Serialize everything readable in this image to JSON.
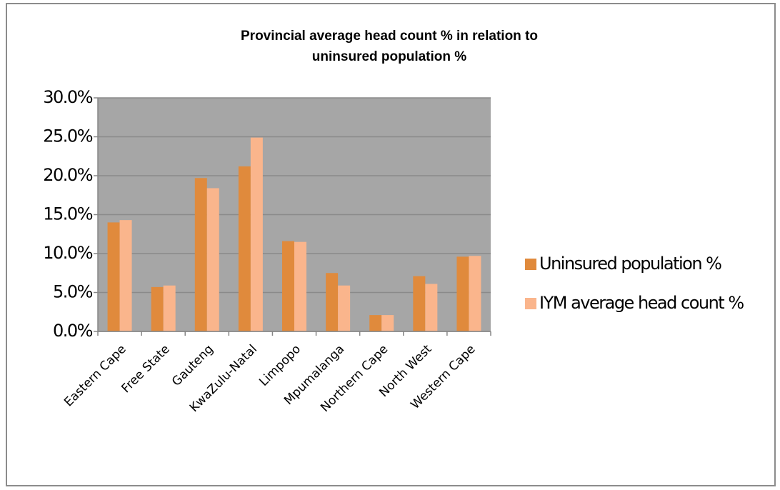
{
  "chart_data": {
    "type": "bar",
    "title": [
      "Provincial average head count % in relation to",
      "uninsured population %"
    ],
    "categories": [
      "Eastern Cape",
      "Free State",
      "Gauteng",
      "KwaZulu-Natal",
      "Limpopo",
      "Mpumalanga",
      "Northern Cape",
      "North West",
      "Western Cape"
    ],
    "series": [
      {
        "name": "Uninsured population %",
        "color": "#e08a3c",
        "values": [
          14.0,
          5.7,
          19.7,
          21.2,
          11.6,
          7.5,
          2.1,
          7.1,
          9.6
        ]
      },
      {
        "name": "IYM average head count %",
        "color": "#fab58c",
        "values": [
          14.3,
          5.9,
          18.4,
          24.9,
          11.5,
          5.9,
          2.1,
          6.1,
          9.7
        ]
      }
    ],
    "ylim": [
      0,
      30
    ],
    "yticks": [
      {
        "value": 0,
        "label": "0.0%"
      },
      {
        "value": 5,
        "label": "5.0%"
      },
      {
        "value": 10,
        "label": "10.0%"
      },
      {
        "value": 15,
        "label": "15.0%"
      },
      {
        "value": 20,
        "label": "20.0%"
      },
      {
        "value": 25,
        "label": "25.0%"
      },
      {
        "value": 30,
        "label": "30.0%"
      }
    ],
    "grid": true,
    "legend": "right"
  }
}
